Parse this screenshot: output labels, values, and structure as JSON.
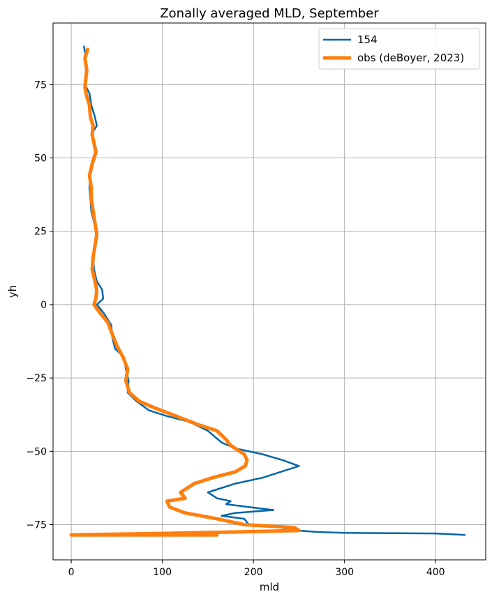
{
  "chart_data": {
    "type": "line",
    "title": "Zonally averaged MLD, September",
    "xlabel": "mld",
    "ylabel": "yh",
    "xlim": [
      -20,
      455
    ],
    "ylim": [
      -87,
      96
    ],
    "xticks": [
      0,
      100,
      200,
      300,
      400
    ],
    "yticks": [
      -75,
      -50,
      -25,
      0,
      25,
      50,
      75
    ],
    "xtick_labels": [
      "0",
      "100",
      "200",
      "300",
      "400"
    ],
    "ytick_labels": [
      "−75",
      "−50",
      "−25",
      "0",
      "25",
      "50",
      "75"
    ],
    "grid": true,
    "legend_position": "top-right",
    "series": [
      {
        "name": "154",
        "color": "#0066a8",
        "points": [
          [
            14,
            88
          ],
          [
            16,
            84
          ],
          [
            16,
            80
          ],
          [
            17,
            77
          ],
          [
            15,
            75
          ],
          [
            20,
            72
          ],
          [
            22,
            68
          ],
          [
            26,
            64
          ],
          [
            28,
            61
          ],
          [
            22,
            58
          ],
          [
            26,
            55
          ],
          [
            28,
            52
          ],
          [
            24,
            48
          ],
          [
            21,
            44
          ],
          [
            20,
            40
          ],
          [
            21,
            36
          ],
          [
            22,
            32
          ],
          [
            25,
            28
          ],
          [
            28,
            25
          ],
          [
            27,
            20
          ],
          [
            24,
            16
          ],
          [
            25,
            12
          ],
          [
            28,
            8
          ],
          [
            34,
            5
          ],
          [
            35,
            2
          ],
          [
            28,
            0
          ],
          [
            36,
            -3
          ],
          [
            44,
            -7
          ],
          [
            45,
            -11
          ],
          [
            48,
            -15
          ],
          [
            58,
            -18
          ],
          [
            60,
            -22
          ],
          [
            63,
            -26
          ],
          [
            62,
            -30
          ],
          [
            72,
            -33
          ],
          [
            85,
            -36
          ],
          [
            105,
            -38
          ],
          [
            130,
            -40
          ],
          [
            150,
            -43
          ],
          [
            165,
            -47
          ],
          [
            180,
            -49
          ],
          [
            210,
            -51
          ],
          [
            232,
            -53
          ],
          [
            250,
            -55
          ],
          [
            230,
            -57
          ],
          [
            210,
            -59
          ],
          [
            180,
            -61
          ],
          [
            160,
            -63
          ],
          [
            150,
            -64
          ],
          [
            160,
            -66
          ],
          [
            175,
            -67
          ],
          [
            170,
            -68
          ],
          [
            195,
            -69
          ],
          [
            222,
            -70
          ],
          [
            180,
            -71
          ],
          [
            165,
            -72
          ],
          [
            190,
            -73
          ],
          [
            195,
            -75
          ],
          [
            230,
            -76
          ],
          [
            248,
            -77
          ],
          [
            270,
            -77.5
          ],
          [
            300,
            -77.8
          ],
          [
            400,
            -78
          ],
          [
            432,
            -78.5
          ]
        ]
      },
      {
        "name": "obs (deBoyer, 2023)",
        "color": "#ff7f0e",
        "points": [
          [
            18,
            87
          ],
          [
            15,
            84
          ],
          [
            17,
            80
          ],
          [
            16,
            77
          ],
          [
            15,
            74
          ],
          [
            17,
            71
          ],
          [
            20,
            68
          ],
          [
            21,
            64
          ],
          [
            24,
            61
          ],
          [
            23,
            58
          ],
          [
            25,
            55
          ],
          [
            27,
            52
          ],
          [
            23,
            48
          ],
          [
            20,
            44
          ],
          [
            22,
            40
          ],
          [
            22,
            36
          ],
          [
            24,
            32
          ],
          [
            26,
            28
          ],
          [
            28,
            24
          ],
          [
            26,
            20
          ],
          [
            24,
            16
          ],
          [
            23,
            12
          ],
          [
            26,
            8
          ],
          [
            28,
            5
          ],
          [
            27,
            2
          ],
          [
            25,
            0
          ],
          [
            32,
            -3
          ],
          [
            40,
            -6
          ],
          [
            45,
            -10
          ],
          [
            50,
            -14
          ],
          [
            57,
            -18
          ],
          [
            62,
            -22
          ],
          [
            60,
            -26
          ],
          [
            64,
            -30
          ],
          [
            75,
            -33
          ],
          [
            90,
            -35
          ],
          [
            115,
            -38
          ],
          [
            140,
            -41
          ],
          [
            160,
            -43
          ],
          [
            170,
            -46
          ],
          [
            175,
            -48
          ],
          [
            180,
            -49
          ],
          [
            190,
            -51
          ],
          [
            193,
            -53
          ],
          [
            191,
            -55
          ],
          [
            180,
            -57
          ],
          [
            155,
            -59
          ],
          [
            135,
            -61
          ],
          [
            125,
            -63
          ],
          [
            120,
            -64
          ],
          [
            125,
            -66
          ],
          [
            105,
            -67
          ],
          [
            108,
            -69
          ],
          [
            125,
            -71
          ],
          [
            160,
            -73
          ],
          [
            190,
            -75
          ],
          [
            245,
            -76
          ],
          [
            250,
            -77
          ],
          [
            180,
            -77.5
          ],
          [
            100,
            -78
          ],
          [
            0,
            -78.5
          ],
          [
            160,
            -78.5
          ]
        ]
      }
    ]
  }
}
